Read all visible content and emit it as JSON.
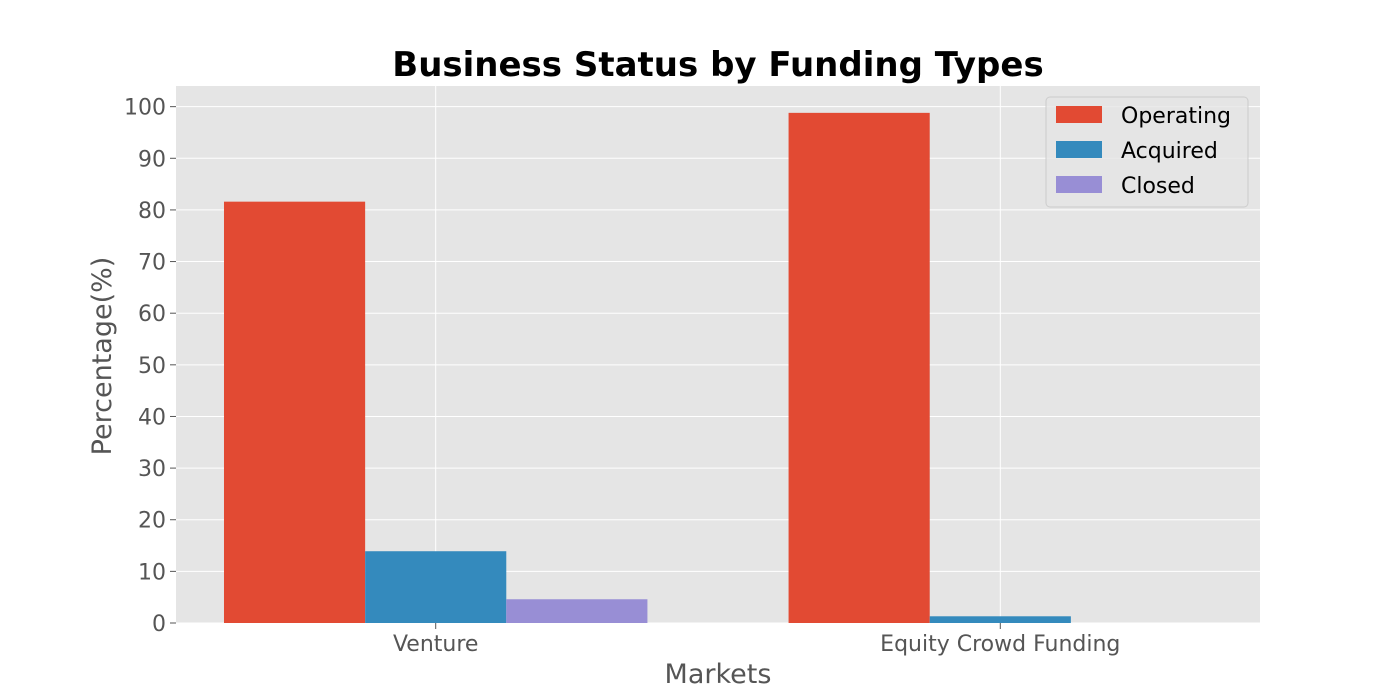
{
  "chart_data": {
    "type": "bar",
    "title": "Business Status by Funding Types",
    "xlabel": "Markets",
    "ylabel": "Percentage(%)",
    "categories": [
      "Venture",
      "Equity Crowd Funding"
    ],
    "series": [
      {
        "name": "Operating",
        "values": [
          81.6,
          98.8
        ],
        "color": "#e24a33"
      },
      {
        "name": "Acquired",
        "values": [
          13.9,
          1.3
        ],
        "color": "#348abd"
      },
      {
        "name": "Closed",
        "values": [
          4.6,
          0.0
        ],
        "color": "#988ed5"
      }
    ],
    "ylim": [
      0,
      104
    ],
    "yticks": [
      0,
      10,
      20,
      30,
      40,
      50,
      60,
      70,
      80,
      90,
      100
    ],
    "grid": true,
    "legend_position": "top-right",
    "background_color": "#e5e5e5",
    "grid_color": "#ffffff"
  }
}
